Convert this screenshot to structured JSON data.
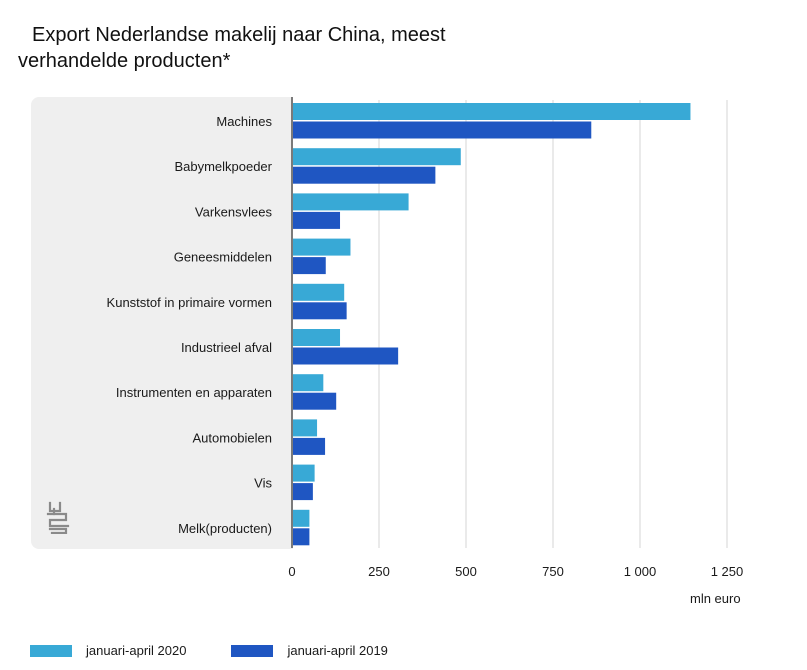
{
  "title_line1": "Export Nederlandse makelij naar China, meest",
  "title_line2": "verhandelde producten*",
  "unit": "mln euro",
  "logo": "cbs-logo-icon",
  "colors": {
    "series_2020": "#38a9d6",
    "series_2019": "#1f56c2",
    "panel": "#efefef",
    "grid": "#d6d6d6",
    "axis": "#7a7a7a"
  },
  "chart_data": {
    "type": "bar",
    "orientation": "horizontal",
    "categories": [
      "Machines",
      "Babymelkpoeder",
      "Varkensvlees",
      "Geneesmiddelen",
      "Kunststof in primaire vormen",
      "Industrieel afval",
      "Instrumenten en apparaten",
      "Automobielen",
      "Vis",
      "Melk(producten)"
    ],
    "series": [
      {
        "name": "januari-april 2020",
        "values": [
          1145,
          485,
          335,
          168,
          150,
          138,
          90,
          72,
          65,
          50
        ]
      },
      {
        "name": "januari-april 2019",
        "values": [
          860,
          412,
          138,
          97,
          157,
          305,
          127,
          95,
          60,
          50
        ]
      }
    ],
    "xlim": [
      0,
      1250
    ],
    "xticks": [
      0,
      250,
      500,
      750,
      1000,
      1250
    ],
    "xtick_labels": [
      "0",
      "250",
      "500",
      "750",
      "1 000",
      "1 250"
    ],
    "xlabel": "mln euro",
    "grid": true,
    "legend": "bottom-left"
  }
}
